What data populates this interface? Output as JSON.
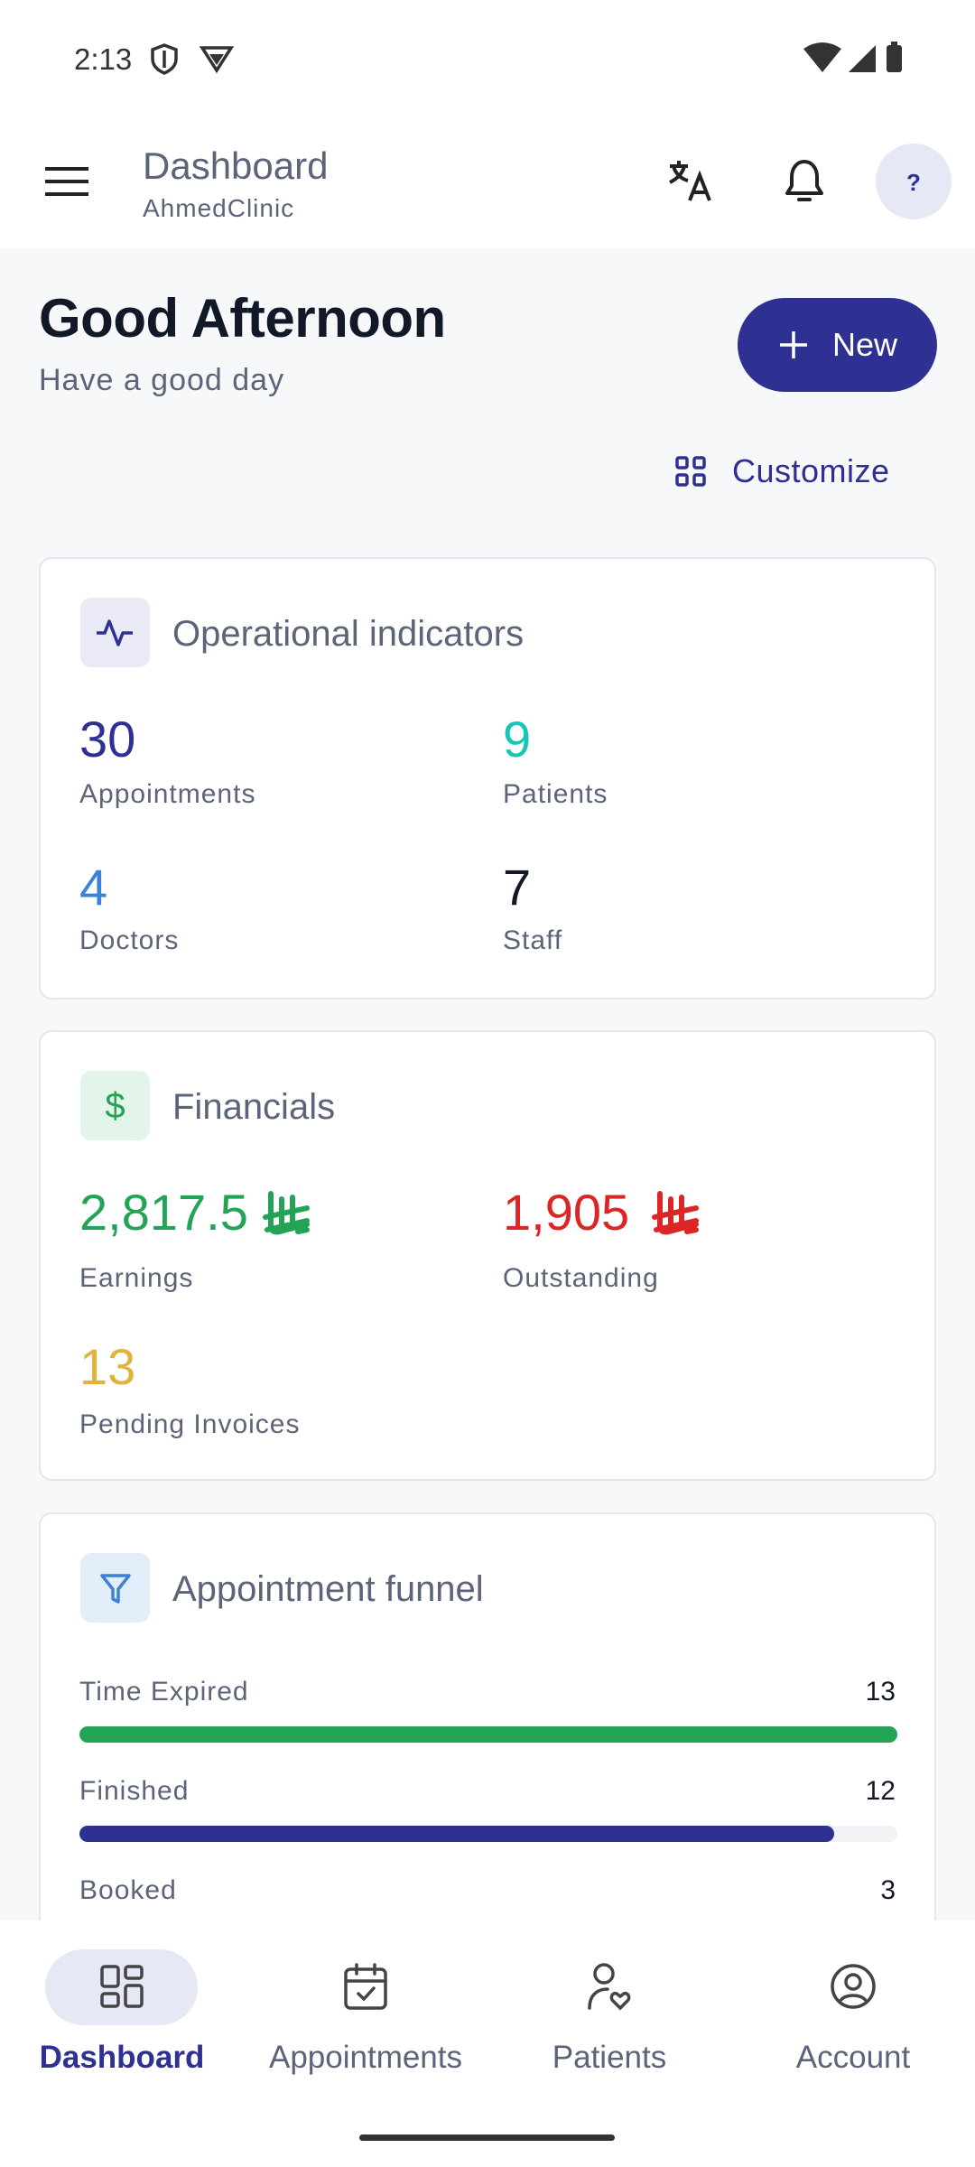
{
  "status_bar": {
    "time": "2:13"
  },
  "app_bar": {
    "title": "Dashboard",
    "subtitle": "AhmedClinic",
    "avatar": "?"
  },
  "greeting": {
    "title": "Good Afternoon",
    "subtitle": "Have a good day",
    "new_button": "New",
    "customize": "Customize"
  },
  "operational": {
    "title": "Operational indicators",
    "items": [
      {
        "value": "30",
        "label": "Appointments"
      },
      {
        "value": "9",
        "label": "Patients"
      },
      {
        "value": "4",
        "label": "Doctors"
      },
      {
        "value": "7",
        "label": "Staff"
      }
    ]
  },
  "financials": {
    "title": "Financials",
    "items": [
      {
        "value": "2,817.5",
        "label": "Earnings"
      },
      {
        "value": "1,905",
        "label": "Outstanding"
      },
      {
        "value": "13",
        "label": "Pending Invoices"
      }
    ]
  },
  "funnel": {
    "title": "Appointment funnel",
    "rows": [
      {
        "label": "Time Expired",
        "value": 13,
        "color": "#22a355"
      },
      {
        "label": "Finished",
        "value": 12,
        "color": "#2e3192"
      },
      {
        "label": "Booked",
        "value": 3,
        "color": "#e0b33a"
      }
    ]
  },
  "bottom_nav": {
    "items": [
      "Dashboard",
      "Appointments",
      "Patients",
      "Account"
    ]
  }
}
